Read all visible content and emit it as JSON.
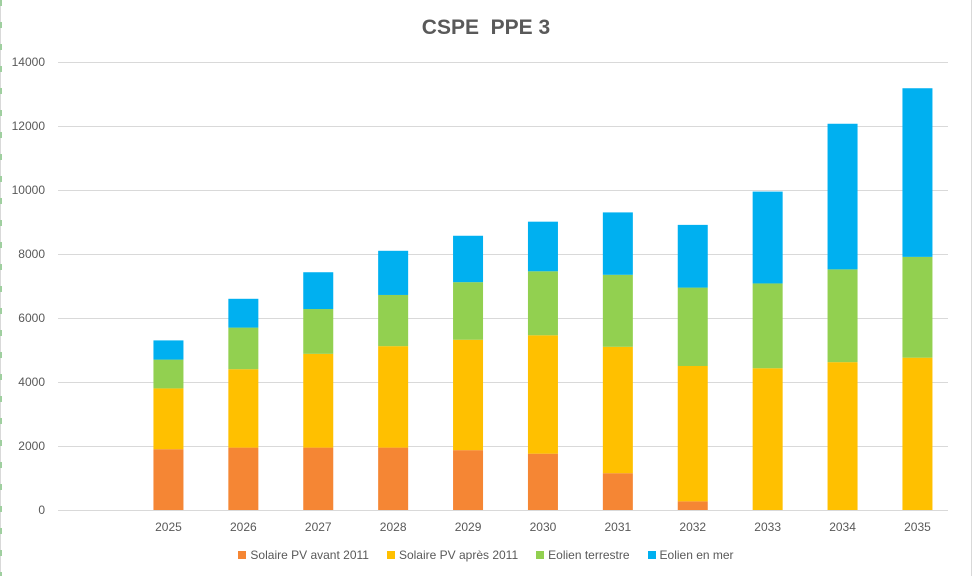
{
  "chart_data": {
    "type": "bar",
    "stacked": true,
    "title": "CSPE  PPE 3",
    "xlabel": "",
    "ylabel": "",
    "ylim": [
      0,
      14000
    ],
    "yticks": [
      0,
      2000,
      4000,
      6000,
      8000,
      10000,
      12000,
      14000
    ],
    "grid": true,
    "legend_position": "bottom",
    "categories": [
      "2025",
      "2026",
      "2027",
      "2028",
      "2029",
      "2030",
      "2031",
      "2032",
      "2033",
      "2034",
      "2035"
    ],
    "series": [
      {
        "name": "Solaire PV avant 2011",
        "color": "#f58634",
        "values": [
          1900,
          1950,
          1950,
          1950,
          1870,
          1760,
          1150,
          270,
          0,
          0,
          0
        ]
      },
      {
        "name": "Solaire PV après 2011",
        "color": "#ffc000",
        "values": [
          1900,
          2450,
          2930,
          3170,
          3450,
          3700,
          3950,
          4230,
          4430,
          4620,
          4760
        ]
      },
      {
        "name": "Eolien terrestre",
        "color": "#92d050",
        "values": [
          900,
          1300,
          1400,
          1600,
          1800,
          2000,
          2250,
          2450,
          2650,
          2900,
          3150
        ]
      },
      {
        "name": "Eolien en mer",
        "color": "#00b0f0",
        "values": [
          600,
          900,
          1150,
          1380,
          1450,
          1550,
          1950,
          1960,
          2870,
          4550,
          5270
        ]
      }
    ]
  }
}
